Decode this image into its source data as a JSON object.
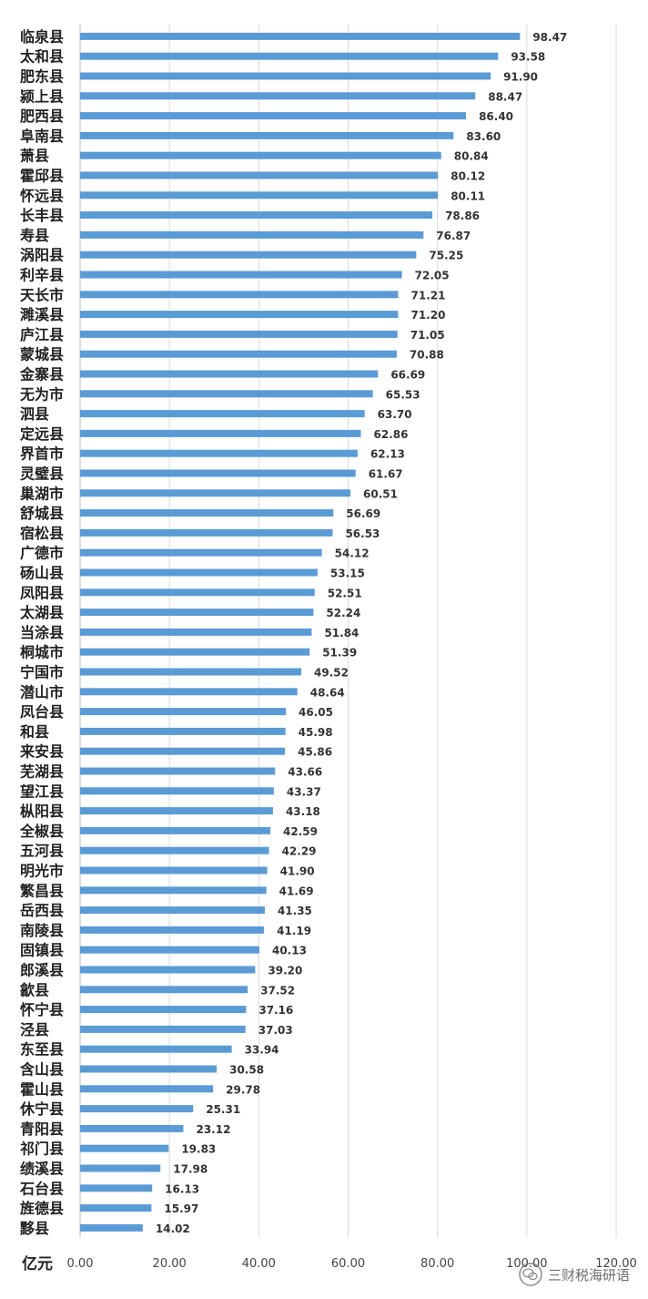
{
  "chart_data": {
    "type": "bar",
    "orientation": "horizontal",
    "categories": [
      "临泉县",
      "太和县",
      "肥东县",
      "颍上县",
      "肥西县",
      "阜南县",
      "萧县",
      "霍邱县",
      "怀远县",
      "长丰县",
      "寿县",
      "涡阳县",
      "利辛县",
      "天长市",
      "濉溪县",
      "庐江县",
      "蒙城县",
      "金寨县",
      "无为市",
      "泗县",
      "定远县",
      "界首市",
      "灵璧县",
      "巢湖市",
      "舒城县",
      "宿松县",
      "广德市",
      "砀山县",
      "凤阳县",
      "太湖县",
      "当涂县",
      "桐城市",
      "宁国市",
      "潜山市",
      "凤台县",
      "和县",
      "来安县",
      "芜湖县",
      "望江县",
      "枞阳县",
      "全椒县",
      "五河县",
      "明光市",
      "繁昌县",
      "岳西县",
      "南陵县",
      "固镇县",
      "郎溪县",
      "歙县",
      "怀宁县",
      "泾县",
      "东至县",
      "含山县",
      "霍山县",
      "休宁县",
      "青阳县",
      "祁门县",
      "绩溪县",
      "石台县",
      "旌德县",
      "黟县"
    ],
    "values": [
      98.47,
      93.58,
      91.9,
      88.47,
      86.4,
      83.6,
      80.84,
      80.12,
      80.11,
      78.86,
      76.87,
      75.25,
      72.05,
      71.21,
      71.2,
      71.05,
      70.88,
      66.69,
      65.53,
      63.7,
      62.86,
      62.13,
      61.67,
      60.51,
      56.69,
      56.53,
      54.12,
      53.15,
      52.51,
      52.24,
      51.84,
      51.39,
      49.52,
      48.64,
      46.05,
      45.98,
      45.86,
      43.66,
      43.37,
      43.18,
      42.59,
      42.29,
      41.9,
      41.69,
      41.35,
      41.19,
      40.13,
      39.2,
      37.52,
      37.16,
      37.03,
      33.94,
      30.58,
      29.78,
      25.31,
      23.12,
      19.83,
      17.98,
      16.13,
      15.97,
      14.02
    ],
    "value_labels": [
      "98.47",
      "93.58",
      "91.90",
      "88.47",
      "86.40",
      "83.60",
      "80.84",
      "80.12",
      "80.11",
      "78.86",
      "76.87",
      "75.25",
      "72.05",
      "71.21",
      "71.20",
      "71.05",
      "70.88",
      "66.69",
      "65.53",
      "63.70",
      "62.86",
      "62.13",
      "61.67",
      "60.51",
      "56.69",
      "56.53",
      "54.12",
      "53.15",
      "52.51",
      "52.24",
      "51.84",
      "51.39",
      "49.52",
      "48.64",
      "46.05",
      "45.98",
      "45.86",
      "43.66",
      "43.37",
      "43.18",
      "42.59",
      "42.29",
      "41.90",
      "41.69",
      "41.35",
      "41.19",
      "40.13",
      "39.20",
      "37.52",
      "37.16",
      "37.03",
      "33.94",
      "30.58",
      "29.78",
      "25.31",
      "23.12",
      "19.83",
      "17.98",
      "16.13",
      "15.97",
      "14.02"
    ],
    "xlim": [
      0,
      120
    ],
    "ticks": [
      "0.00",
      "20.00",
      "40.00",
      "60.00",
      "80.00",
      "100.00",
      "120.00"
    ],
    "unit_label": "亿元",
    "title": "",
    "grid": "vertical",
    "bar_color": "#5b9bd5"
  },
  "watermark": {
    "text": "三财税海研语",
    "icon": "wechat-icon"
  }
}
